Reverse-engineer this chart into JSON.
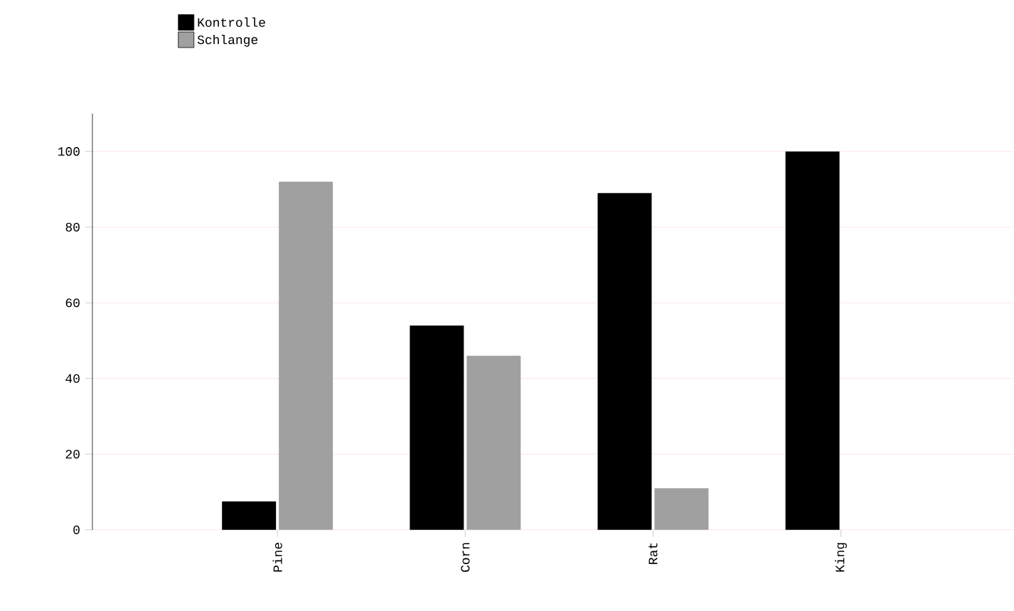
{
  "chart_data": {
    "type": "bar",
    "categories": [
      "Pine",
      "Corn",
      "Rat",
      "King"
    ],
    "series": [
      {
        "name": "Kontrolle",
        "color": "#000000",
        "values": [
          7.5,
          54,
          89,
          100
        ]
      },
      {
        "name": "Schlange",
        "color": "#a0a0a0",
        "values": [
          92,
          46,
          11,
          0
        ]
      }
    ],
    "ylim": [
      0,
      110
    ],
    "yticks": [
      0,
      20,
      40,
      60,
      80,
      100
    ],
    "grid": "y",
    "legend": "top left"
  }
}
